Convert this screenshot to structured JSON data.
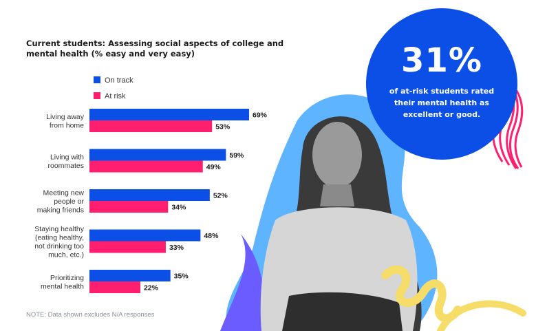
{
  "chart_data": {
    "type": "bar",
    "orientation": "horizontal",
    "title": "Current students: Assessing social aspects of college and mental health (% easy and very easy)",
    "categories": [
      [
        "Living away",
        "from home"
      ],
      [
        "Living with",
        "roommates"
      ],
      [
        "Meeting new",
        "people or",
        "making friends"
      ],
      [
        "Staying healthy",
        "(eating healthy,",
        "not drinking too",
        "much, etc.)"
      ],
      [
        "Prioritizing",
        "mental health"
      ]
    ],
    "series": [
      {
        "name": "On track",
        "color": "#0b4fe6",
        "values": [
          69,
          59,
          52,
          48,
          35
        ],
        "labels": [
          "69%",
          "59%",
          "52%",
          "48%",
          "35%"
        ]
      },
      {
        "name": "At risk",
        "color": "#ff1f6e",
        "values": [
          53,
          49,
          34,
          33,
          22
        ],
        "labels": [
          "53%",
          "49%",
          "34%",
          "33%",
          "22%"
        ]
      }
    ],
    "xlim": [
      0,
      100
    ],
    "grid": false,
    "legend": "top-left",
    "note": "NOTE: Data shown excludes N/A responses"
  },
  "callout": {
    "big_number": "31%",
    "text": "of at-risk students rated their mental health as excellent or good."
  },
  "colors": {
    "blue": "#0b4fe6",
    "pink": "#ff1f6e",
    "yellow": "#f6dd6a",
    "light_blue": "#5fb4ff"
  }
}
